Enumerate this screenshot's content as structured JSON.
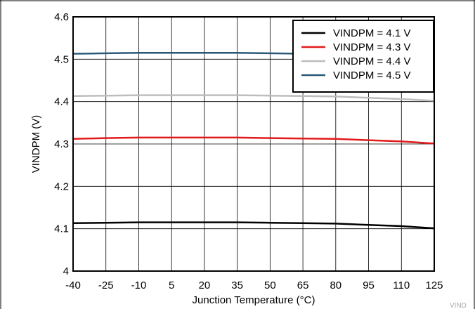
{
  "chart_data": {
    "type": "line",
    "xlabel": "Junction Temperature (°C)",
    "ylabel": "VINDPM (V)",
    "xlim": [
      -40,
      125
    ],
    "ylim": [
      4.0,
      4.6
    ],
    "x_ticks": [
      "-40",
      "-25",
      "-10",
      "5",
      "20",
      "35",
      "50",
      "65",
      "80",
      "95",
      "110",
      "125"
    ],
    "y_ticks": [
      "4",
      "4.1",
      "4.2",
      "4.3",
      "4.4",
      "4.5",
      "4.6"
    ],
    "grid": true,
    "legend_position": "top-right",
    "series": [
      {
        "name": "VINDPM = 4.1 V",
        "color": "#000000",
        "x": [
          -40,
          -25,
          -10,
          5,
          20,
          35,
          50,
          65,
          80,
          95,
          110,
          125
        ],
        "y": [
          4.113,
          4.114,
          4.115,
          4.115,
          4.115,
          4.115,
          4.114,
          4.113,
          4.112,
          4.109,
          4.106,
          4.101
        ]
      },
      {
        "name": "VINDPM = 4.3 V",
        "color": "#e31a1c",
        "x": [
          -40,
          -25,
          -10,
          5,
          20,
          35,
          50,
          65,
          80,
          95,
          110,
          125
        ],
        "y": [
          4.312,
          4.314,
          4.315,
          4.315,
          4.315,
          4.315,
          4.314,
          4.313,
          4.312,
          4.309,
          4.306,
          4.301
        ]
      },
      {
        "name": "VINDPM = 4.4 V",
        "color": "#bdbdbd",
        "x": [
          -40,
          -25,
          -10,
          5,
          20,
          35,
          50,
          65,
          80,
          95,
          110,
          125
        ],
        "y": [
          4.413,
          4.414,
          4.415,
          4.415,
          4.415,
          4.415,
          4.414,
          4.413,
          4.412,
          4.409,
          4.406,
          4.402
        ]
      },
      {
        "name": "VINDPM = 4.5 V",
        "color": "#2b5a78",
        "x": [
          -40,
          -25,
          -10,
          5,
          20,
          35,
          50,
          65,
          80,
          95,
          110,
          125
        ],
        "y": [
          4.513,
          4.514,
          4.515,
          4.515,
          4.515,
          4.515,
          4.514,
          4.513,
          4.512,
          4.509,
          4.506,
          4.502
        ]
      }
    ]
  },
  "corner_label": "VIND"
}
